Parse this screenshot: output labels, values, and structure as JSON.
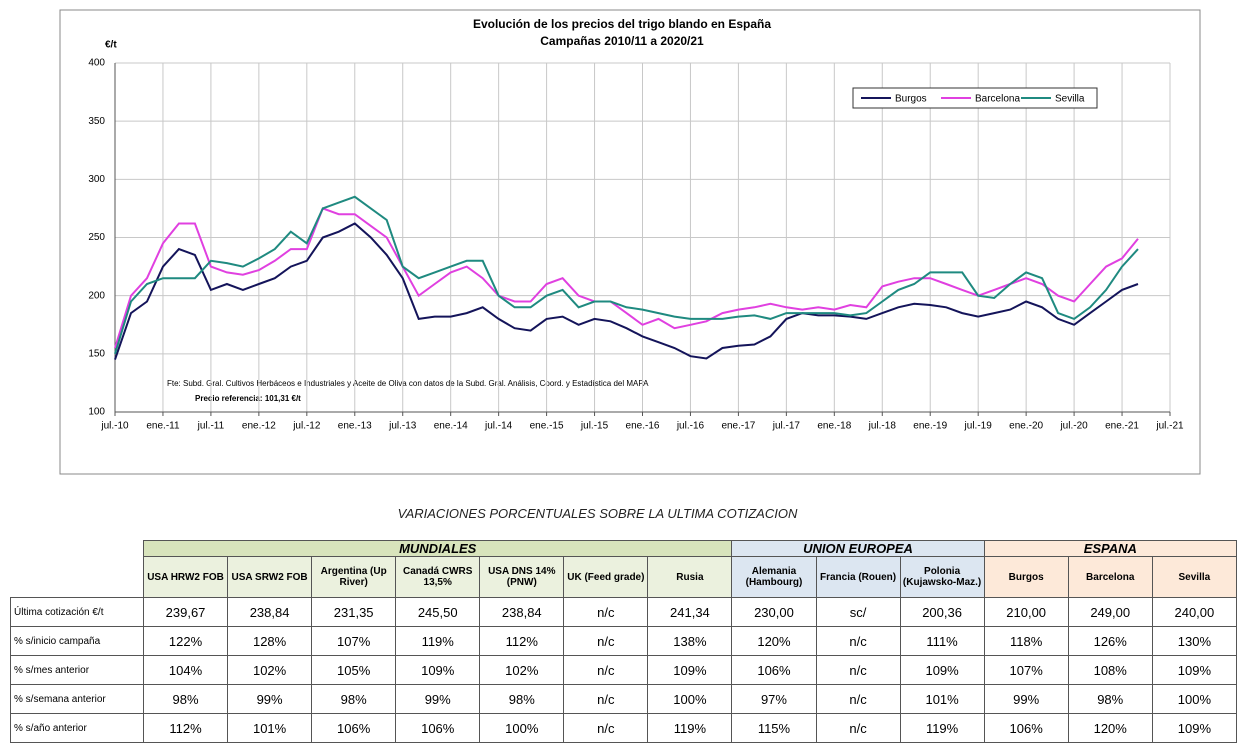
{
  "chart_data": {
    "type": "line",
    "title": "Evolución de los precios del trigo blando en España",
    "subtitle": "Campañas 2010/11 a 2020/21",
    "y_label": "€/t",
    "annotations": [
      "Fte: Subd. Gral. Cultivos Herbáceos e Industriales y Aceite de Oliva con datos de la Subd. Gral. Análisis, Coord. y Estadística del MAPA",
      "Precio referencia: 101,31 €/t"
    ],
    "x": [
      "2010-07",
      "2010-09",
      "2010-11",
      "2011-01",
      "2011-03",
      "2011-05",
      "2011-07",
      "2011-09",
      "2011-11",
      "2012-01",
      "2012-03",
      "2012-05",
      "2012-07",
      "2012-09",
      "2012-11",
      "2013-01",
      "2013-03",
      "2013-05",
      "2013-07",
      "2013-09",
      "2013-11",
      "2014-01",
      "2014-03",
      "2014-05",
      "2014-07",
      "2014-09",
      "2014-11",
      "2015-01",
      "2015-03",
      "2015-05",
      "2015-07",
      "2015-09",
      "2015-11",
      "2016-01",
      "2016-03",
      "2016-05",
      "2016-07",
      "2016-09",
      "2016-11",
      "2017-01",
      "2017-03",
      "2017-05",
      "2017-07",
      "2017-09",
      "2017-11",
      "2018-01",
      "2018-03",
      "2018-05",
      "2018-07",
      "2018-09",
      "2018-11",
      "2019-01",
      "2019-03",
      "2019-05",
      "2019-07",
      "2019-09",
      "2019-11",
      "2020-01",
      "2020-03",
      "2020-05",
      "2020-07",
      "2020-09",
      "2020-11",
      "2021-01",
      "2021-03"
    ],
    "series": [
      {
        "name": "Burgos",
        "color": "#14145a",
        "values": [
          145,
          185,
          195,
          225,
          240,
          235,
          205,
          210,
          205,
          210,
          215,
          225,
          230,
          250,
          255,
          262,
          250,
          235,
          215,
          180,
          182,
          182,
          185,
          190,
          180,
          172,
          170,
          180,
          182,
          175,
          180,
          178,
          172,
          165,
          160,
          155,
          148,
          146,
          155,
          157,
          158,
          165,
          180,
          185,
          183,
          183,
          182,
          180,
          185,
          190,
          193,
          192,
          190,
          185,
          182,
          185,
          188,
          195,
          190,
          180,
          175,
          185,
          195,
          205,
          210
        ]
      },
      {
        "name": "Barcelona",
        "color": "#e040e0",
        "values": [
          155,
          200,
          215,
          245,
          262,
          262,
          225,
          220,
          218,
          222,
          230,
          240,
          240,
          275,
          270,
          270,
          260,
          250,
          225,
          200,
          210,
          220,
          225,
          215,
          200,
          195,
          195,
          210,
          215,
          200,
          195,
          195,
          185,
          175,
          180,
          172,
          175,
          178,
          185,
          188,
          190,
          193,
          190,
          188,
          190,
          188,
          192,
          190,
          208,
          212,
          215,
          215,
          210,
          205,
          200,
          205,
          210,
          215,
          210,
          200,
          195,
          210,
          225,
          232,
          249
        ]
      },
      {
        "name": "Sevilla",
        "color": "#1f8a80",
        "values": [
          150,
          195,
          210,
          215,
          215,
          215,
          230,
          228,
          225,
          232,
          240,
          255,
          245,
          275,
          280,
          285,
          275,
          265,
          225,
          215,
          220,
          225,
          230,
          230,
          200,
          190,
          190,
          200,
          205,
          190,
          195,
          195,
          190,
          188,
          185,
          182,
          180,
          180,
          180,
          182,
          183,
          180,
          185,
          185,
          185,
          185,
          183,
          185,
          195,
          205,
          210,
          220,
          220,
          220,
          200,
          198,
          210,
          220,
          215,
          185,
          180,
          190,
          205,
          225,
          240
        ]
      }
    ],
    "xlim": [
      "2010-07",
      "2021-07"
    ],
    "xticks": [
      {
        "value": "2010-07",
        "label": "jul.-10"
      },
      {
        "value": "2011-01",
        "label": "ene.-11"
      },
      {
        "value": "2011-07",
        "label": "jul.-11"
      },
      {
        "value": "2012-01",
        "label": "ene.-12"
      },
      {
        "value": "2012-07",
        "label": "jul.-12"
      },
      {
        "value": "2013-01",
        "label": "ene.-13"
      },
      {
        "value": "2013-07",
        "label": "jul.-13"
      },
      {
        "value": "2014-01",
        "label": "ene.-14"
      },
      {
        "value": "2014-07",
        "label": "jul.-14"
      },
      {
        "value": "2015-01",
        "label": "ene.-15"
      },
      {
        "value": "2015-07",
        "label": "jul.-15"
      },
      {
        "value": "2016-01",
        "label": "ene.-16"
      },
      {
        "value": "2016-07",
        "label": "jul.-16"
      },
      {
        "value": "2017-01",
        "label": "ene.-17"
      },
      {
        "value": "2017-07",
        "label": "jul.-17"
      },
      {
        "value": "2018-01",
        "label": "ene.-18"
      },
      {
        "value": "2018-07",
        "label": "jul.-18"
      },
      {
        "value": "2019-01",
        "label": "ene.-19"
      },
      {
        "value": "2019-07",
        "label": "jul.-19"
      },
      {
        "value": "2020-01",
        "label": "ene.-20"
      },
      {
        "value": "2020-07",
        "label": "jul.-20"
      },
      {
        "value": "2021-01",
        "label": "ene.-21"
      },
      {
        "value": "2021-07",
        "label": "jul.-21"
      }
    ],
    "ylim": [
      100,
      400
    ],
    "yticks": [
      100,
      150,
      200,
      250,
      300,
      350,
      400
    ],
    "grid": true,
    "legend": "upper right"
  },
  "table": {
    "caption": "VARIACIONES PORCENTUALES SOBRE LA ULTIMA COTIZACION",
    "groups": [
      {
        "label": "MUNDIALES",
        "columns": [
          "USA HRW2 FOB",
          "USA SRW2 FOB",
          "Argentina (Up River)",
          "Canadá CWRS 13,5%",
          "USA DNS 14% (PNW)",
          "UK (Feed grade)",
          "Rusia"
        ]
      },
      {
        "label": "UNION EUROPEA",
        "columns": [
          "Alemania (Hambourg)",
          "Francia (Rouen)",
          "Polonia (Kujawsko-Maz.)"
        ]
      },
      {
        "label": "ESPANA",
        "columns": [
          "Burgos",
          "Barcelona",
          "Sevilla"
        ]
      }
    ],
    "rows": [
      {
        "label": "Última cotización €/t",
        "cells": [
          "239,67",
          "238,84",
          "231,35",
          "245,50",
          "238,84",
          "n/c",
          "241,34",
          "230,00",
          "sc/",
          "200,36",
          "210,00",
          "249,00",
          "240,00"
        ]
      },
      {
        "label": "% s/inicio campaña",
        "cells": [
          "122%",
          "128%",
          "107%",
          "119%",
          "112%",
          "n/c",
          "138%",
          "120%",
          "n/c",
          "111%",
          "118%",
          "126%",
          "130%"
        ]
      },
      {
        "label": "% s/mes anterior",
        "cells": [
          "104%",
          "102%",
          "105%",
          "109%",
          "102%",
          "n/c",
          "109%",
          "106%",
          "n/c",
          "109%",
          "107%",
          "108%",
          "109%"
        ]
      },
      {
        "label": "% s/semana anterior",
        "cells": [
          "98%",
          "99%",
          "98%",
          "99%",
          "98%",
          "n/c",
          "100%",
          "97%",
          "n/c",
          "101%",
          "99%",
          "98%",
          "100%"
        ]
      },
      {
        "label": "% s/año anterior",
        "cells": [
          "112%",
          "101%",
          "106%",
          "106%",
          "100%",
          "n/c",
          "119%",
          "115%",
          "n/c",
          "119%",
          "106%",
          "120%",
          "109%"
        ]
      }
    ]
  }
}
